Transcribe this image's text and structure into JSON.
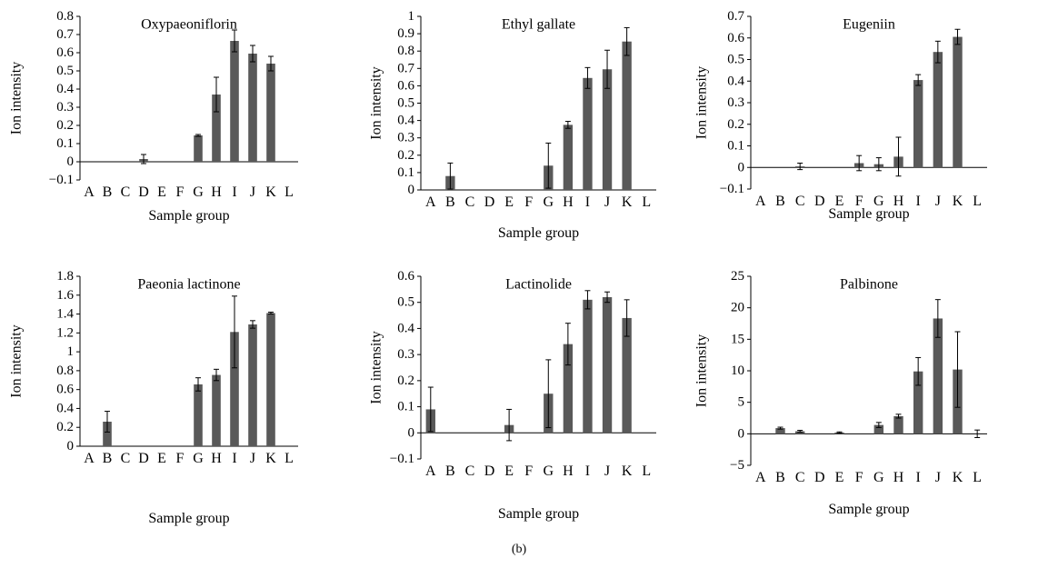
{
  "figure_label": "(b)",
  "chart_data": [
    {
      "type": "bar",
      "title": "Oxypaeoniflorin",
      "xlabel": "Sample group",
      "ylabel": "Ion intensity",
      "categories": [
        "A",
        "B",
        "C",
        "D",
        "E",
        "F",
        "G",
        "H",
        "I",
        "J",
        "K",
        "L"
      ],
      "values": [
        0,
        0,
        0,
        0.015,
        0,
        0,
        0.145,
        0.37,
        0.665,
        0.595,
        0.54,
        0
      ],
      "errors": [
        0,
        0,
        0,
        0.025,
        0,
        0,
        0.005,
        0.095,
        0.06,
        0.045,
        0.04,
        0
      ],
      "ylim": [
        -0.1,
        0.8
      ],
      "yticks": [
        -0.1,
        0,
        0.1,
        0.2,
        0.3,
        0.4,
        0.5,
        0.6,
        0.7,
        0.8
      ],
      "ytick_labels": [
        "−0.1",
        "0",
        "0.1",
        "0.2",
        "0.3",
        "0.4",
        "0.5",
        "0.6",
        "0.7",
        "0.8"
      ],
      "bar_color": "#595959"
    },
    {
      "type": "bar",
      "title": "Ethyl  gallate",
      "xlabel": "Sample group",
      "ylabel": "Ion intensity",
      "categories": [
        "A",
        "B",
        "C",
        "D",
        "E",
        "F",
        "G",
        "H",
        "I",
        "J",
        "K",
        "L"
      ],
      "values": [
        0,
        0.08,
        0,
        0,
        0,
        0,
        0.14,
        0.375,
        0.645,
        0.695,
        0.855,
        0
      ],
      "errors": [
        0,
        0.075,
        0,
        0,
        0,
        0,
        0.13,
        0.02,
        0.06,
        0.11,
        0.08,
        0
      ],
      "ylim": [
        0,
        1
      ],
      "yticks": [
        0,
        0.1,
        0.2,
        0.3,
        0.4,
        0.5,
        0.6,
        0.7,
        0.8,
        0.9,
        1
      ],
      "ytick_labels": [
        "0",
        "0.1",
        "0.2",
        "0.3",
        "0.4",
        "0.5",
        "0.6",
        "0.7",
        "0.8",
        "0.9",
        "1"
      ],
      "bar_color": "#595959"
    },
    {
      "type": "bar",
      "title": "Eugeniin",
      "xlabel": "Sample group",
      "ylabel": "Ion intensity",
      "categories": [
        "A",
        "B",
        "C",
        "D",
        "E",
        "F",
        "G",
        "H",
        "I",
        "J",
        "K",
        "L"
      ],
      "values": [
        0,
        0,
        0.005,
        0,
        0,
        0.02,
        0.015,
        0.05,
        0.405,
        0.535,
        0.605,
        0
      ],
      "errors": [
        0,
        0,
        0.015,
        0,
        0,
        0.035,
        0.03,
        0.09,
        0.025,
        0.05,
        0.035,
        0
      ],
      "ylim": [
        -0.1,
        0.7
      ],
      "yticks": [
        -0.1,
        0,
        0.1,
        0.2,
        0.3,
        0.4,
        0.5,
        0.6,
        0.7
      ],
      "ytick_labels": [
        "−0.1",
        "0",
        "0.1",
        "0.2",
        "0.3",
        "0.4",
        "0.5",
        "0.6",
        "0.7"
      ],
      "bar_color": "#595959"
    },
    {
      "type": "bar",
      "title": "Paeonia lactinone",
      "xlabel": "Sample group",
      "ylabel": "Ion intensity",
      "categories": [
        "A",
        "B",
        "C",
        "D",
        "E",
        "F",
        "G",
        "H",
        "I",
        "J",
        "K",
        "L"
      ],
      "values": [
        0,
        0.26,
        0,
        0,
        0,
        0,
        0.655,
        0.755,
        1.21,
        1.29,
        1.41,
        0
      ],
      "errors": [
        0,
        0.11,
        0,
        0,
        0,
        0,
        0.07,
        0.06,
        0.38,
        0.04,
        0.01,
        0
      ],
      "ylim": [
        0,
        1.8
      ],
      "yticks": [
        0,
        0.2,
        0.4,
        0.6,
        0.8,
        1,
        1.2,
        1.4,
        1.6,
        1.8
      ],
      "ytick_labels": [
        "0",
        "0.2",
        "0.4",
        "0.6",
        "0.8",
        "1",
        "1.2",
        "1.4",
        "1.6",
        "1.8"
      ],
      "bar_color": "#595959"
    },
    {
      "type": "bar",
      "title": "Lactinolide",
      "xlabel": "Sample group",
      "ylabel": "Ion intensity",
      "categories": [
        "A",
        "B",
        "C",
        "D",
        "E",
        "F",
        "G",
        "H",
        "I",
        "J",
        "K",
        "L"
      ],
      "values": [
        0.09,
        0,
        0,
        0,
        0.03,
        0,
        0.15,
        0.34,
        0.51,
        0.52,
        0.44,
        0
      ],
      "errors": [
        0.085,
        0,
        0,
        0,
        0.06,
        0,
        0.13,
        0.08,
        0.035,
        0.02,
        0.07,
        0
      ],
      "ylim": [
        -0.1,
        0.6
      ],
      "yticks": [
        -0.1,
        0,
        0.1,
        0.2,
        0.3,
        0.4,
        0.5,
        0.6
      ],
      "ytick_labels": [
        "−0.1",
        "0",
        "0.1",
        "0.2",
        "0.3",
        "0.4",
        "0.5",
        "0.6"
      ],
      "bar_color": "#595959"
    },
    {
      "type": "bar",
      "title": "Palbinone",
      "xlabel": "Sample group",
      "ylabel": "Ion intensity",
      "categories": [
        "A",
        "B",
        "C",
        "D",
        "E",
        "F",
        "G",
        "H",
        "I",
        "J",
        "K",
        "L"
      ],
      "values": [
        0,
        0.9,
        0.4,
        0,
        0.2,
        0,
        1.4,
        2.8,
        9.9,
        18.3,
        10.2,
        0
      ],
      "errors": [
        0,
        0.15,
        0.15,
        0,
        0.1,
        0,
        0.4,
        0.3,
        2.2,
        3.0,
        6.0,
        0.6
      ],
      "ylim": [
        -5,
        25
      ],
      "yticks": [
        -5,
        0,
        5,
        10,
        15,
        20,
        25
      ],
      "ytick_labels": [
        "−5",
        "0",
        "5",
        "10",
        "15",
        "20",
        "25"
      ],
      "bar_color": "#595959"
    }
  ]
}
